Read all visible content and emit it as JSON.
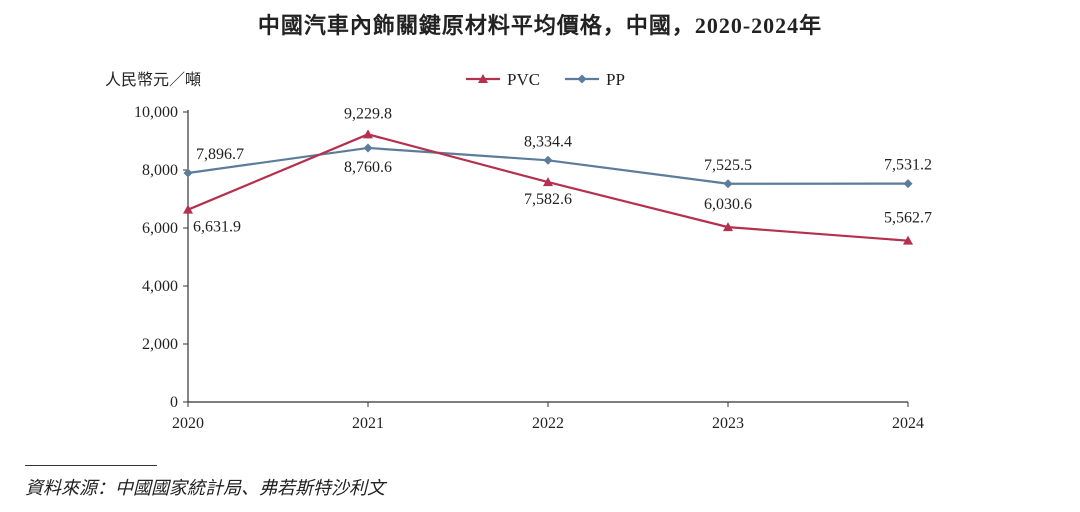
{
  "colors": {
    "pvc": "#b5304f",
    "pp": "#5b7d9b",
    "axis": "#333333"
  },
  "chart_data": {
    "type": "line",
    "title": "中國汽車內飾關鍵原材料平均價格，中國，2020-2024年",
    "ylabel": "人民幣元／噸",
    "xlabel": "",
    "categories": [
      "2020",
      "2021",
      "2022",
      "2023",
      "2024"
    ],
    "ylim": [
      0,
      10000
    ],
    "yticks": [
      0,
      2000,
      4000,
      6000,
      8000,
      10000
    ],
    "ytick_labels": [
      "0",
      "2,000",
      "4,000",
      "6,000",
      "8,000",
      "10,000"
    ],
    "legend_position": "top",
    "grid": false,
    "series": [
      {
        "name": "PVC",
        "marker": "triangle",
        "values": [
          6631.9,
          9229.8,
          7582.6,
          6030.6,
          5562.7
        ],
        "labels": [
          "6,631.9",
          "9,229.8",
          "7,582.6",
          "6,030.6",
          "5,562.7"
        ]
      },
      {
        "name": "PP",
        "marker": "diamond",
        "values": [
          7896.7,
          8760.6,
          8334.4,
          7525.5,
          7531.2
        ],
        "labels": [
          "7,896.7",
          "8,760.6",
          "8,334.4",
          "7,525.5",
          "7,531.2"
        ]
      }
    ]
  },
  "source": "資料來源：中國國家統計局、弗若斯特沙利文"
}
